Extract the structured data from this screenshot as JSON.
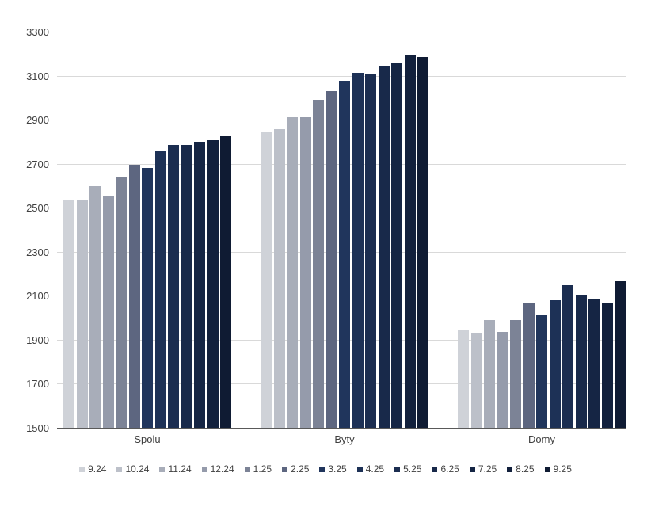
{
  "chart_data": {
    "type": "bar",
    "title": "",
    "categories": [
      "Spolu",
      "Byty",
      "Domy"
    ],
    "series": [
      {
        "name": "9.24",
        "color": "#cfd2d8",
        "values": [
          2540,
          2845,
          1950
        ]
      },
      {
        "name": "10.24",
        "color": "#bcc0c9",
        "values": [
          2540,
          2860,
          1935
        ]
      },
      {
        "name": "11.24",
        "color": "#a8adb9",
        "values": [
          2600,
          2915,
          1995
        ]
      },
      {
        "name": "12.24",
        "color": "#959bab",
        "values": [
          2560,
          2915,
          1940
        ]
      },
      {
        "name": "1.25",
        "color": "#7c8396",
        "values": [
          2640,
          2995,
          1995
        ]
      },
      {
        "name": "2.25",
        "color": "#5d6680",
        "values": [
          2700,
          3035,
          2070
        ]
      },
      {
        "name": "3.25",
        "color": "#20355c",
        "values": [
          2685,
          3080,
          2020
        ]
      },
      {
        "name": "4.25",
        "color": "#1d3156",
        "values": [
          2760,
          3115,
          2085
        ]
      },
      {
        "name": "5.25",
        "color": "#1b2d50",
        "values": [
          2790,
          3110,
          2150
        ]
      },
      {
        "name": "6.25",
        "color": "#18294a",
        "values": [
          2790,
          3150,
          2110
        ]
      },
      {
        "name": "7.25",
        "color": "#152544",
        "values": [
          2805,
          3160,
          2090
        ]
      },
      {
        "name": "8.25",
        "color": "#12203c",
        "values": [
          2810,
          3200,
          2070
        ]
      },
      {
        "name": "9.25",
        "color": "#0f1b33",
        "values": [
          2830,
          3190,
          2170
        ]
      }
    ],
    "ylim": [
      1500,
      3300
    ],
    "yticks": [
      1500,
      1700,
      1900,
      2100,
      2300,
      2500,
      2700,
      2900,
      3100,
      3300
    ],
    "grid": true,
    "legend_position": "bottom"
  },
  "layout_colors": {
    "background": "#ffffff",
    "gridline": "#d9d9d9",
    "axis_line": "#595959",
    "tick_text": "#404040"
  }
}
